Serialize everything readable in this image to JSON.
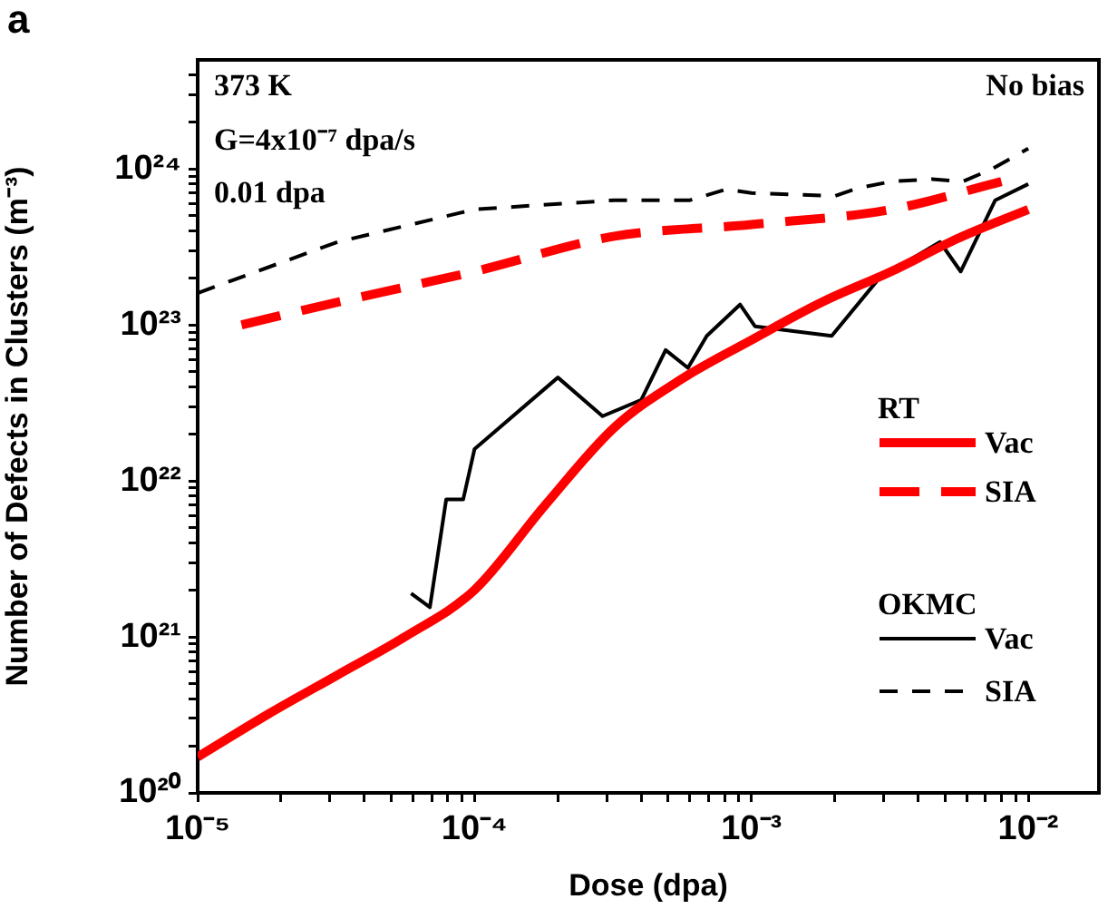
{
  "chart_data": {
    "type": "line",
    "title": "a",
    "xlabel": "Dose (dpa)",
    "ylabel": "Number of Defects in Clusters (m⁻³)",
    "log": "xy",
    "grid": false,
    "legend": "right",
    "marker": "none",
    "xlim": [
      1e-05,
      0.018
    ],
    "xticks": [
      {
        "value": 1e-05,
        "label": "10⁻⁵"
      },
      {
        "value": 2e-05,
        "label": null
      },
      {
        "value": 3e-05,
        "label": null
      },
      {
        "value": 4e-05,
        "label": null
      },
      {
        "value": 5e-05,
        "label": null
      },
      {
        "value": 6e-05,
        "label": null
      },
      {
        "value": 7e-05,
        "label": null
      },
      {
        "value": 8e-05,
        "label": null
      },
      {
        "value": 9e-05,
        "label": null
      },
      {
        "value": 0.0001,
        "label": "10⁻⁴"
      },
      {
        "value": 0.0002,
        "label": null
      },
      {
        "value": 0.0003,
        "label": null
      },
      {
        "value": 0.0004,
        "label": null
      },
      {
        "value": 0.0005,
        "label": null
      },
      {
        "value": 0.0006,
        "label": null
      },
      {
        "value": 0.0007,
        "label": null
      },
      {
        "value": 0.0008,
        "label": null
      },
      {
        "value": 0.0009,
        "label": null
      },
      {
        "value": 0.001,
        "label": "10⁻³"
      },
      {
        "value": 0.002,
        "label": null
      },
      {
        "value": 0.003,
        "label": null
      },
      {
        "value": 0.004,
        "label": null
      },
      {
        "value": 0.005,
        "label": null
      },
      {
        "value": 0.006,
        "label": null
      },
      {
        "value": 0.007,
        "label": null
      },
      {
        "value": 0.008,
        "label": null
      },
      {
        "value": 0.009,
        "label": null
      },
      {
        "value": 0.01,
        "label": "10⁻²"
      }
    ],
    "ylim": [
      1e+20,
      5e+24
    ],
    "yticks": [
      {
        "value": 1e+20,
        "label": "10²⁰"
      },
      {
        "value": 2e+20,
        "label": null
      },
      {
        "value": 3e+20,
        "label": null
      },
      {
        "value": 4e+20,
        "label": null
      },
      {
        "value": 5e+20,
        "label": null
      },
      {
        "value": 6e+20,
        "label": null
      },
      {
        "value": 7e+20,
        "label": null
      },
      {
        "value": 8e+20,
        "label": null
      },
      {
        "value": 9e+20,
        "label": null
      },
      {
        "value": 1e+21,
        "label": "10²¹"
      },
      {
        "value": 2e+21,
        "label": null
      },
      {
        "value": 3e+21,
        "label": null
      },
      {
        "value": 4e+21,
        "label": null
      },
      {
        "value": 5e+21,
        "label": null
      },
      {
        "value": 6e+21,
        "label": null
      },
      {
        "value": 7e+21,
        "label": null
      },
      {
        "value": 8e+21,
        "label": null
      },
      {
        "value": 9e+21,
        "label": null
      },
      {
        "value": 1e+22,
        "label": "10²²"
      },
      {
        "value": 2e+22,
        "label": null
      },
      {
        "value": 3e+22,
        "label": null
      },
      {
        "value": 4e+22,
        "label": null
      },
      {
        "value": 5e+22,
        "label": null
      },
      {
        "value": 6e+22,
        "label": null
      },
      {
        "value": 7e+22,
        "label": null
      },
      {
        "value": 8e+22,
        "label": null
      },
      {
        "value": 9e+22,
        "label": null
      },
      {
        "value": 1e+23,
        "label": "10²³"
      },
      {
        "value": 2e+23,
        "label": null
      },
      {
        "value": 3e+23,
        "label": null
      },
      {
        "value": 4e+23,
        "label": null
      },
      {
        "value": 5e+23,
        "label": null
      },
      {
        "value": 6e+23,
        "label": null
      },
      {
        "value": 7e+23,
        "label": null
      },
      {
        "value": 8e+23,
        "label": null
      },
      {
        "value": 9e+23,
        "label": null
      },
      {
        "value": 1e+24,
        "label": "10²⁴"
      },
      {
        "value": 2e+24,
        "label": null
      },
      {
        "value": 3e+24,
        "label": null
      },
      {
        "value": 4e+24,
        "label": null
      }
    ],
    "annotations": [
      "373 K",
      "G=4x10⁻⁷ dpa/s",
      "0.01 dpa",
      "No bias",
      "RT",
      "OKMC"
    ],
    "series": [
      {
        "name": "Vac",
        "color": "#ff0000",
        "line_style": "solid",
        "x": [
          1e-05,
          1.8e-05,
          3.2e-05,
          5.6e-05,
          0.0001,
          0.00018,
          0.00032,
          0.00056,
          0.001,
          0.0018,
          0.0032,
          0.0056,
          0.01
        ],
        "values": [
          1.7e+20,
          3.2e+20,
          5.7e+20,
          1e+21,
          2e+21,
          7e+21,
          2.2e+22,
          4.5e+22,
          8e+22,
          1.4e+23,
          2.2e+23,
          3.6e+23,
          5.5e+23
        ]
      },
      {
        "name": "SIA",
        "color": "#ff0000",
        "line_style": "dashed",
        "x": [
          1.44e-05,
          3.2e-05,
          0.0001,
          0.00032,
          0.001,
          0.0032,
          0.008
        ],
        "values": [
          1e+23,
          1.4e+23,
          2.2e+23,
          3.7e+23,
          4.4e+23,
          5.5e+23,
          8.3e+23
        ]
      },
      {
        "name": "Vac",
        "color": "#000000",
        "line_style": "solid",
        "x": [
          5.9e-05,
          6.9e-05,
          7.9e-05,
          9.1e-05,
          0.0001,
          0.0002,
          0.00029,
          0.0004,
          0.00049,
          0.00059,
          0.00069,
          0.00091,
          0.00103,
          0.00195,
          0.0029,
          0.0048,
          0.0057,
          0.0076,
          0.01
        ],
        "values": [
          1.9e+21,
          1.55e+21,
          7.6e+21,
          7.6e+21,
          1.6e+22,
          4.6e+22,
          2.6e+22,
          3.3e+22,
          6.9e+22,
          5.3e+22,
          8.5e+22,
          1.35e+23,
          9.8e+22,
          8.5e+22,
          2e+23,
          3.4e+23,
          2.2e+23,
          6.3e+23,
          8e+23
        ]
      },
      {
        "name": "SIA",
        "color": "#000000",
        "line_style": "dashed",
        "x": [
          1e-05,
          3.2e-05,
          0.0001,
          0.00032,
          0.00045,
          0.0006,
          0.00081,
          0.001,
          0.002,
          0.0024,
          0.0032,
          0.0045,
          0.0058,
          0.0074,
          0.01
        ],
        "values": [
          1.6e+23,
          3.4e+23,
          5.5e+23,
          6.3e+23,
          6.3e+23,
          6.3e+23,
          7.4e+23,
          7e+23,
          6.7e+23,
          7.5e+23,
          8.3e+23,
          8.6e+23,
          8.3e+23,
          1e+24,
          1.35e+24
        ]
      }
    ]
  }
}
